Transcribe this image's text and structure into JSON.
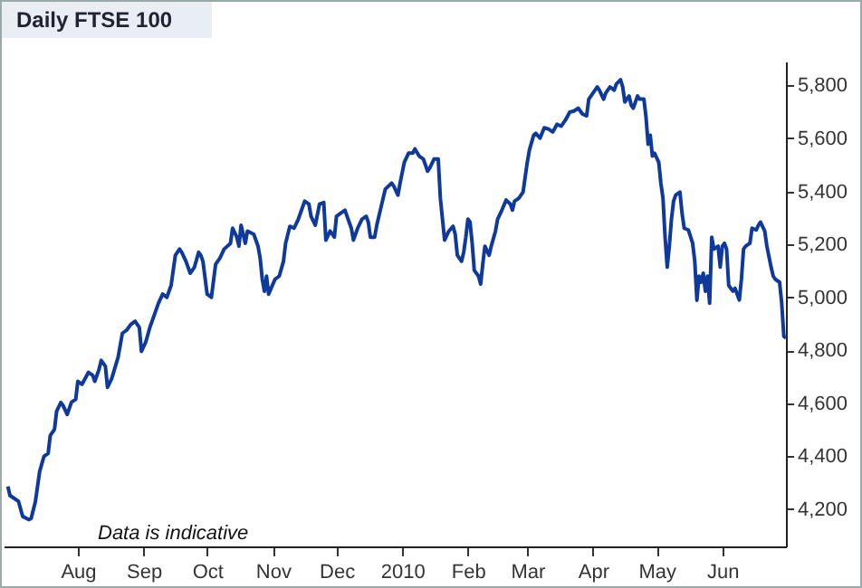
{
  "chart_data": {
    "type": "line",
    "title": "Daily FTSE 100",
    "annotations": [
      "Data is indicative"
    ],
    "color": "#0f3a9c",
    "grid": false,
    "xlim": [
      "2009-06-27",
      "2010-07-01"
    ],
    "ylim": [
      4060,
      5890
    ],
    "xticks": [
      {
        "value": "2009-08-01",
        "label": "Aug"
      },
      {
        "value": "2009-09-01",
        "label": "Sep"
      },
      {
        "value": "2009-10-01",
        "label": "Oct"
      },
      {
        "value": "2009-11-01",
        "label": "Nov"
      },
      {
        "value": "2009-12-01",
        "label": "Dec"
      },
      {
        "value": "2010-01-01",
        "label": "2010"
      },
      {
        "value": "2010-02-01",
        "label": "Feb"
      },
      {
        "value": "2010-03-01",
        "label": "Mar"
      },
      {
        "value": "2010-04-01",
        "label": "Apr"
      },
      {
        "value": "2010-05-01",
        "label": "May"
      },
      {
        "value": "2010-06-01",
        "label": "Jun"
      }
    ],
    "yticks": [
      {
        "value": 4200,
        "label": "4,200"
      },
      {
        "value": 4400,
        "label": "4,400"
      },
      {
        "value": 4600,
        "label": "4,600"
      },
      {
        "value": 4800,
        "label": "4,800"
      },
      {
        "value": 5000,
        "label": "5,000"
      },
      {
        "value": 5200,
        "label": "5,200"
      },
      {
        "value": 5400,
        "label": "5,400"
      },
      {
        "value": 5600,
        "label": "5,600"
      },
      {
        "value": 5800,
        "label": "5,800"
      }
    ],
    "x": [
      "2009-06-29",
      "2009-06-30",
      "2009-07-02",
      "2009-07-04",
      "2009-07-06",
      "2009-07-09",
      "2009-07-10",
      "2009-07-12",
      "2009-07-14",
      "2009-07-16",
      "2009-07-18",
      "2009-07-19",
      "2009-07-21",
      "2009-07-22",
      "2009-07-24",
      "2009-07-25",
      "2009-07-27",
      "2009-07-29",
      "2009-07-31",
      "2009-08-01",
      "2009-08-03",
      "2009-08-06",
      "2009-08-08",
      "2009-08-09",
      "2009-08-11",
      "2009-08-12",
      "2009-08-14",
      "2009-08-15",
      "2009-08-17",
      "2009-08-20",
      "2009-08-22",
      "2009-08-24",
      "2009-08-26",
      "2009-08-28",
      "2009-08-30",
      "2009-08-31",
      "2009-09-02",
      "2009-09-04",
      "2009-09-06",
      "2009-09-08",
      "2009-09-10",
      "2009-09-12",
      "2009-09-14",
      "2009-09-16",
      "2009-09-18",
      "2009-09-19",
      "2009-09-21",
      "2009-09-23",
      "2009-09-25",
      "2009-09-27",
      "2009-09-28",
      "2009-09-29",
      "2009-10-01",
      "2009-10-03",
      "2009-10-05",
      "2009-10-07",
      "2009-10-09",
      "2009-10-12",
      "2009-10-13",
      "2009-10-15",
      "2009-10-16",
      "2009-10-17",
      "2009-10-19",
      "2009-10-20",
      "2009-10-23",
      "2009-10-25",
      "2009-10-26",
      "2009-10-27",
      "2009-10-28",
      "2009-10-29",
      "2009-10-30",
      "2009-11-02",
      "2009-11-04",
      "2009-11-06",
      "2009-11-07",
      "2009-11-09",
      "2009-11-11",
      "2009-11-13",
      "2009-11-16",
      "2009-11-18",
      "2009-11-19",
      "2009-11-21",
      "2009-11-23",
      "2009-11-25",
      "2009-11-26",
      "2009-11-28",
      "2009-11-30",
      "2009-12-01",
      "2009-12-03",
      "2009-12-05",
      "2009-12-06",
      "2009-12-08",
      "2009-12-09",
      "2009-12-11",
      "2009-12-13",
      "2009-12-15",
      "2009-12-16",
      "2009-12-17",
      "2009-12-19",
      "2009-12-20",
      "2009-12-22",
      "2009-12-24",
      "2009-12-27",
      "2009-12-28",
      "2009-12-30",
      "2009-12-31",
      "2010-01-02",
      "2010-01-04",
      "2010-01-06",
      "2010-01-07",
      "2010-01-09",
      "2010-01-11",
      "2010-01-13",
      "2010-01-14",
      "2010-01-16",
      "2010-01-18",
      "2010-01-19",
      "2010-01-20",
      "2010-01-21",
      "2010-01-23",
      "2010-01-25",
      "2010-01-26",
      "2010-01-27",
      "2010-01-29",
      "2010-01-30",
      "2010-01-31",
      "2010-02-01",
      "2010-02-02",
      "2010-02-03",
      "2010-02-04",
      "2010-02-06",
      "2010-02-07",
      "2010-02-08",
      "2010-02-09",
      "2010-02-11",
      "2010-02-12",
      "2010-02-14",
      "2010-02-15",
      "2010-02-17",
      "2010-02-19",
      "2010-02-21",
      "2010-02-22",
      "2010-02-23",
      "2010-02-25",
      "2010-02-27",
      "2010-02-28",
      "2010-03-01",
      "2010-03-02",
      "2010-03-04",
      "2010-03-05",
      "2010-03-07",
      "2010-03-09",
      "2010-03-11",
      "2010-03-13",
      "2010-03-15",
      "2010-03-17",
      "2010-03-19",
      "2010-03-21",
      "2010-03-23",
      "2010-03-25",
      "2010-03-27",
      "2010-03-29",
      "2010-03-30",
      "2010-04-01",
      "2010-04-03",
      "2010-04-04",
      "2010-04-06",
      "2010-04-07",
      "2010-04-09",
      "2010-04-11",
      "2010-04-12",
      "2010-04-14",
      "2010-04-15",
      "2010-04-16",
      "2010-04-18",
      "2010-04-19",
      "2010-04-20",
      "2010-04-22",
      "2010-04-23",
      "2010-04-25",
      "2010-04-26",
      "2010-04-27",
      "2010-04-28",
      "2010-04-29",
      "2010-04-30",
      "2010-05-02",
      "2010-05-03",
      "2010-05-04",
      "2010-05-05",
      "2010-05-06",
      "2010-05-07",
      "2010-05-08",
      "2010-05-09",
      "2010-05-10",
      "2010-05-12",
      "2010-05-13",
      "2010-05-14",
      "2010-05-16",
      "2010-05-18",
      "2010-05-19",
      "2010-05-20",
      "2010-05-21",
      "2010-05-22",
      "2010-05-23",
      "2010-05-24",
      "2010-05-25",
      "2010-05-26",
      "2010-05-27",
      "2010-05-28",
      "2010-05-30",
      "2010-05-31",
      "2010-06-01",
      "2010-06-02",
      "2010-06-03",
      "2010-06-04",
      "2010-06-06",
      "2010-06-07",
      "2010-06-09",
      "2010-06-10",
      "2010-06-11",
      "2010-06-12",
      "2010-06-14",
      "2010-06-15",
      "2010-06-17",
      "2010-06-18",
      "2010-06-19",
      "2010-06-21",
      "2010-06-22",
      "2010-06-24",
      "2010-06-25",
      "2010-06-26",
      "2010-06-28",
      "2010-06-29",
      "2010-06-30",
      "2010-07-01"
    ],
    "values": [
      4286,
      4252,
      4241,
      4230,
      4173,
      4161,
      4166,
      4230,
      4343,
      4399,
      4411,
      4479,
      4502,
      4570,
      4603,
      4592,
      4558,
      4604,
      4615,
      4683,
      4672,
      4717,
      4706,
      4683,
      4728,
      4762,
      4740,
      4660,
      4694,
      4774,
      4864,
      4876,
      4898,
      4910,
      4887,
      4796,
      4830,
      4887,
      4932,
      4977,
      5012,
      5000,
      5045,
      5159,
      5182,
      5170,
      5136,
      5091,
      5114,
      5170,
      5159,
      5136,
      5012,
      5000,
      5125,
      5148,
      5182,
      5204,
      5261,
      5227,
      5193,
      5272,
      5204,
      5250,
      5238,
      5193,
      5148,
      5068,
      5023,
      5080,
      5012,
      5068,
      5080,
      5136,
      5204,
      5268,
      5261,
      5295,
      5363,
      5352,
      5306,
      5272,
      5352,
      5358,
      5216,
      5250,
      5227,
      5306,
      5318,
      5329,
      5306,
      5261,
      5216,
      5261,
      5295,
      5306,
      5284,
      5227,
      5227,
      5272,
      5340,
      5408,
      5431,
      5420,
      5386,
      5431,
      5510,
      5544,
      5544,
      5560,
      5533,
      5522,
      5476,
      5488,
      5522,
      5522,
      5374,
      5295,
      5216,
      5250,
      5268,
      5238,
      5159,
      5136,
      5170,
      5227,
      5295,
      5284,
      5204,
      5102,
      5080,
      5050,
      5125,
      5193,
      5159,
      5193,
      5250,
      5295,
      5329,
      5367,
      5352,
      5329,
      5363,
      5374,
      5397,
      5454,
      5510,
      5556,
      5612,
      5619,
      5601,
      5640,
      5635,
      5624,
      5653,
      5646,
      5669,
      5699,
      5703,
      5714,
      5692,
      5685,
      5748,
      5771,
      5794,
      5782,
      5748,
      5771,
      5794,
      5782,
      5805,
      5821,
      5794,
      5737,
      5760,
      5726,
      5714,
      5760,
      5748,
      5748,
      5680,
      5578,
      5612,
      5533,
      5544,
      5510,
      5431,
      5374,
      5227,
      5114,
      5193,
      5295,
      5363,
      5386,
      5397,
      5317,
      5261,
      5254,
      5204,
      5136,
      4989,
      5080,
      5057,
      5091,
      5023,
      5080,
      4978,
      5227,
      5182,
      5193,
      5114,
      5193,
      5204,
      5182,
      5045,
      5023,
      5034,
      4990,
      5068,
      5182,
      5193,
      5204,
      5261,
      5254,
      5272,
      5284,
      5250,
      5193,
      5114,
      5080,
      5068,
      5057,
      4978,
      4853,
      4846
    ]
  }
}
